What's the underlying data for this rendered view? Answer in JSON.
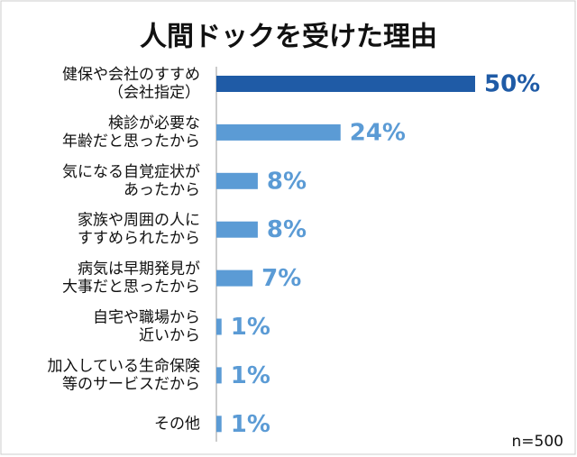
{
  "chart_data": {
    "type": "barh",
    "title": "人間ドックを受けた理由",
    "categories": [
      [
        "健保や会社のすすめ",
        "（会社指定）"
      ],
      [
        "検診が必要な",
        "年齢だと思ったから"
      ],
      [
        "気になる自覚症状が",
        "あったから"
      ],
      [
        "家族や周囲の人に",
        "すすめられたから"
      ],
      [
        "病気は早期発見が",
        "大事だと思ったから"
      ],
      [
        "自宅や職場から",
        "近いから"
      ],
      [
        "加入している生命保険",
        "等のサービスだから"
      ],
      [
        "その他"
      ]
    ],
    "values": [
      50,
      24,
      8,
      8,
      7,
      1,
      1,
      1
    ],
    "value_labels": [
      "50%",
      "24%",
      "8%",
      "8%",
      "7%",
      "1%",
      "1%",
      "1%"
    ],
    "colors": [
      "#1f5ba6",
      "#5b9bd5",
      "#5b9bd5",
      "#5b9bd5",
      "#5b9bd5",
      "#5b9bd5",
      "#5b9bd5",
      "#5b9bd5"
    ],
    "xlim": [
      0,
      50
    ],
    "note": "n=500"
  }
}
